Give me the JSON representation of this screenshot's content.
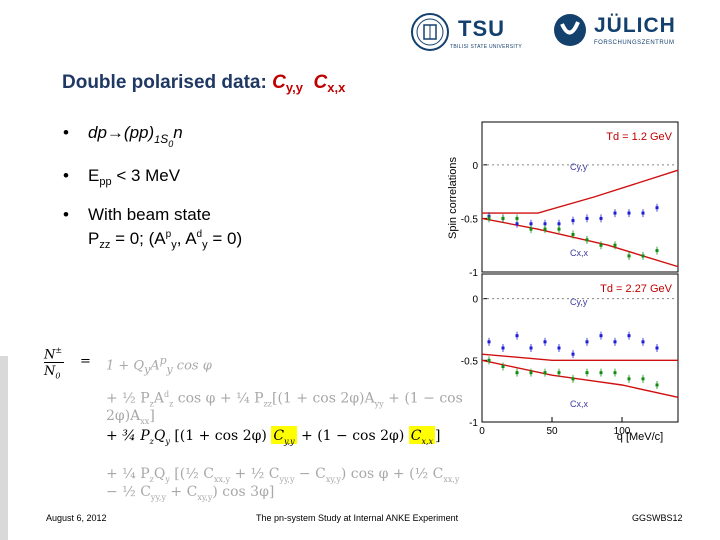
{
  "logos": {
    "tsu": {
      "name": "TSU",
      "subtitle": "TBILISI STATE UNIVERSITY"
    },
    "julich": {
      "name": "JÜLICH",
      "subtitle": "FORSCHUNGSZENTRUM"
    }
  },
  "title": {
    "prefix": "Double polarised data: ",
    "c1": "C",
    "c1_sub": "y,y",
    "c2": "C",
    "c2_sub": "x,x"
  },
  "bullets": {
    "b1": {
      "main": "dp→(pp)",
      "sub1": "1",
      "s": "S",
      "sub2": "0",
      "n": "n"
    },
    "b2": {
      "main": "E",
      "sub": "pp",
      "rest": " < 3 MeV"
    },
    "b3": {
      "line1": "With beam state",
      "p": "P",
      "p_sub": "zz",
      "mid": " = 0; (A",
      "p_sup": "p",
      "y1": "y",
      "comma": ", A",
      "d_sup": "d",
      "y2": "y",
      "end": " = 0)"
    }
  },
  "chart_data": [
    {
      "type": "scatter",
      "title": "Td = 1.2 GeV",
      "ylabel": "Spin correlations",
      "ylim": [
        -1.0,
        0.4
      ],
      "xlim": [
        0,
        140
      ],
      "yticks": [
        "0",
        "-0.5",
        "-1"
      ],
      "series": [
        {
          "name": "Cy,y",
          "color": "#1f1fd6",
          "x": [
            5,
            15,
            25,
            35,
            45,
            55,
            65,
            75,
            85,
            95,
            105,
            115,
            125
          ],
          "y": [
            -0.48,
            -0.5,
            -0.55,
            -0.55,
            -0.55,
            -0.55,
            -0.52,
            -0.5,
            -0.5,
            -0.45,
            -0.45,
            -0.45,
            -0.4
          ]
        },
        {
          "name": "Cx,x",
          "color": "#128c12",
          "x": [
            5,
            15,
            25,
            35,
            45,
            55,
            65,
            75,
            85,
            95,
            105,
            115,
            125
          ],
          "y": [
            -0.5,
            -0.5,
            -0.5,
            -0.6,
            -0.6,
            -0.6,
            -0.65,
            -0.7,
            -0.75,
            -0.75,
            -0.85,
            -0.85,
            -0.8
          ]
        }
      ]
    },
    {
      "type": "scatter",
      "title": "Td = 2.27 GeV",
      "xlabel": "q [MeV/c]",
      "ylim": [
        -1.0,
        0.2
      ],
      "xlim": [
        0,
        140
      ],
      "xticks": [
        "0",
        "50",
        "100"
      ],
      "yticks": [
        "0",
        "-0.5",
        "-1"
      ],
      "series": [
        {
          "name": "Cy,y",
          "color": "#1f1fd6",
          "x": [
            5,
            15,
            25,
            35,
            45,
            55,
            65,
            75,
            85,
            95,
            105,
            115,
            125
          ],
          "y": [
            -0.35,
            -0.4,
            -0.3,
            -0.4,
            -0.35,
            -0.4,
            -0.45,
            -0.35,
            -0.3,
            -0.35,
            -0.3,
            -0.35,
            -0.4
          ]
        },
        {
          "name": "Cx,x",
          "color": "#128c12",
          "x": [
            5,
            15,
            25,
            35,
            45,
            55,
            65,
            75,
            85,
            95,
            105,
            115,
            125
          ],
          "y": [
            -0.5,
            -0.55,
            -0.6,
            -0.6,
            -0.6,
            -0.6,
            -0.65,
            -0.6,
            -0.6,
            -0.6,
            -0.65,
            -0.65,
            -0.7
          ]
        }
      ]
    }
  ],
  "formula": {
    "lhs_num": "N",
    "lhs_num_sup": "±",
    "lhs_den": "N",
    "lhs_den_sub": "0",
    "eq": "=",
    "l1": "1 + Q",
    "l1b": "y",
    "l1c": "A",
    "l1d": "p",
    "l1e": "y",
    "l1f": " cos φ",
    "half": "1/2",
    "quarter": "1/4"
  },
  "footer": {
    "date": "August 6, 2012",
    "center": "The pn-system Study at Internal ANKE Experiment",
    "right": "GGSWBS12"
  }
}
